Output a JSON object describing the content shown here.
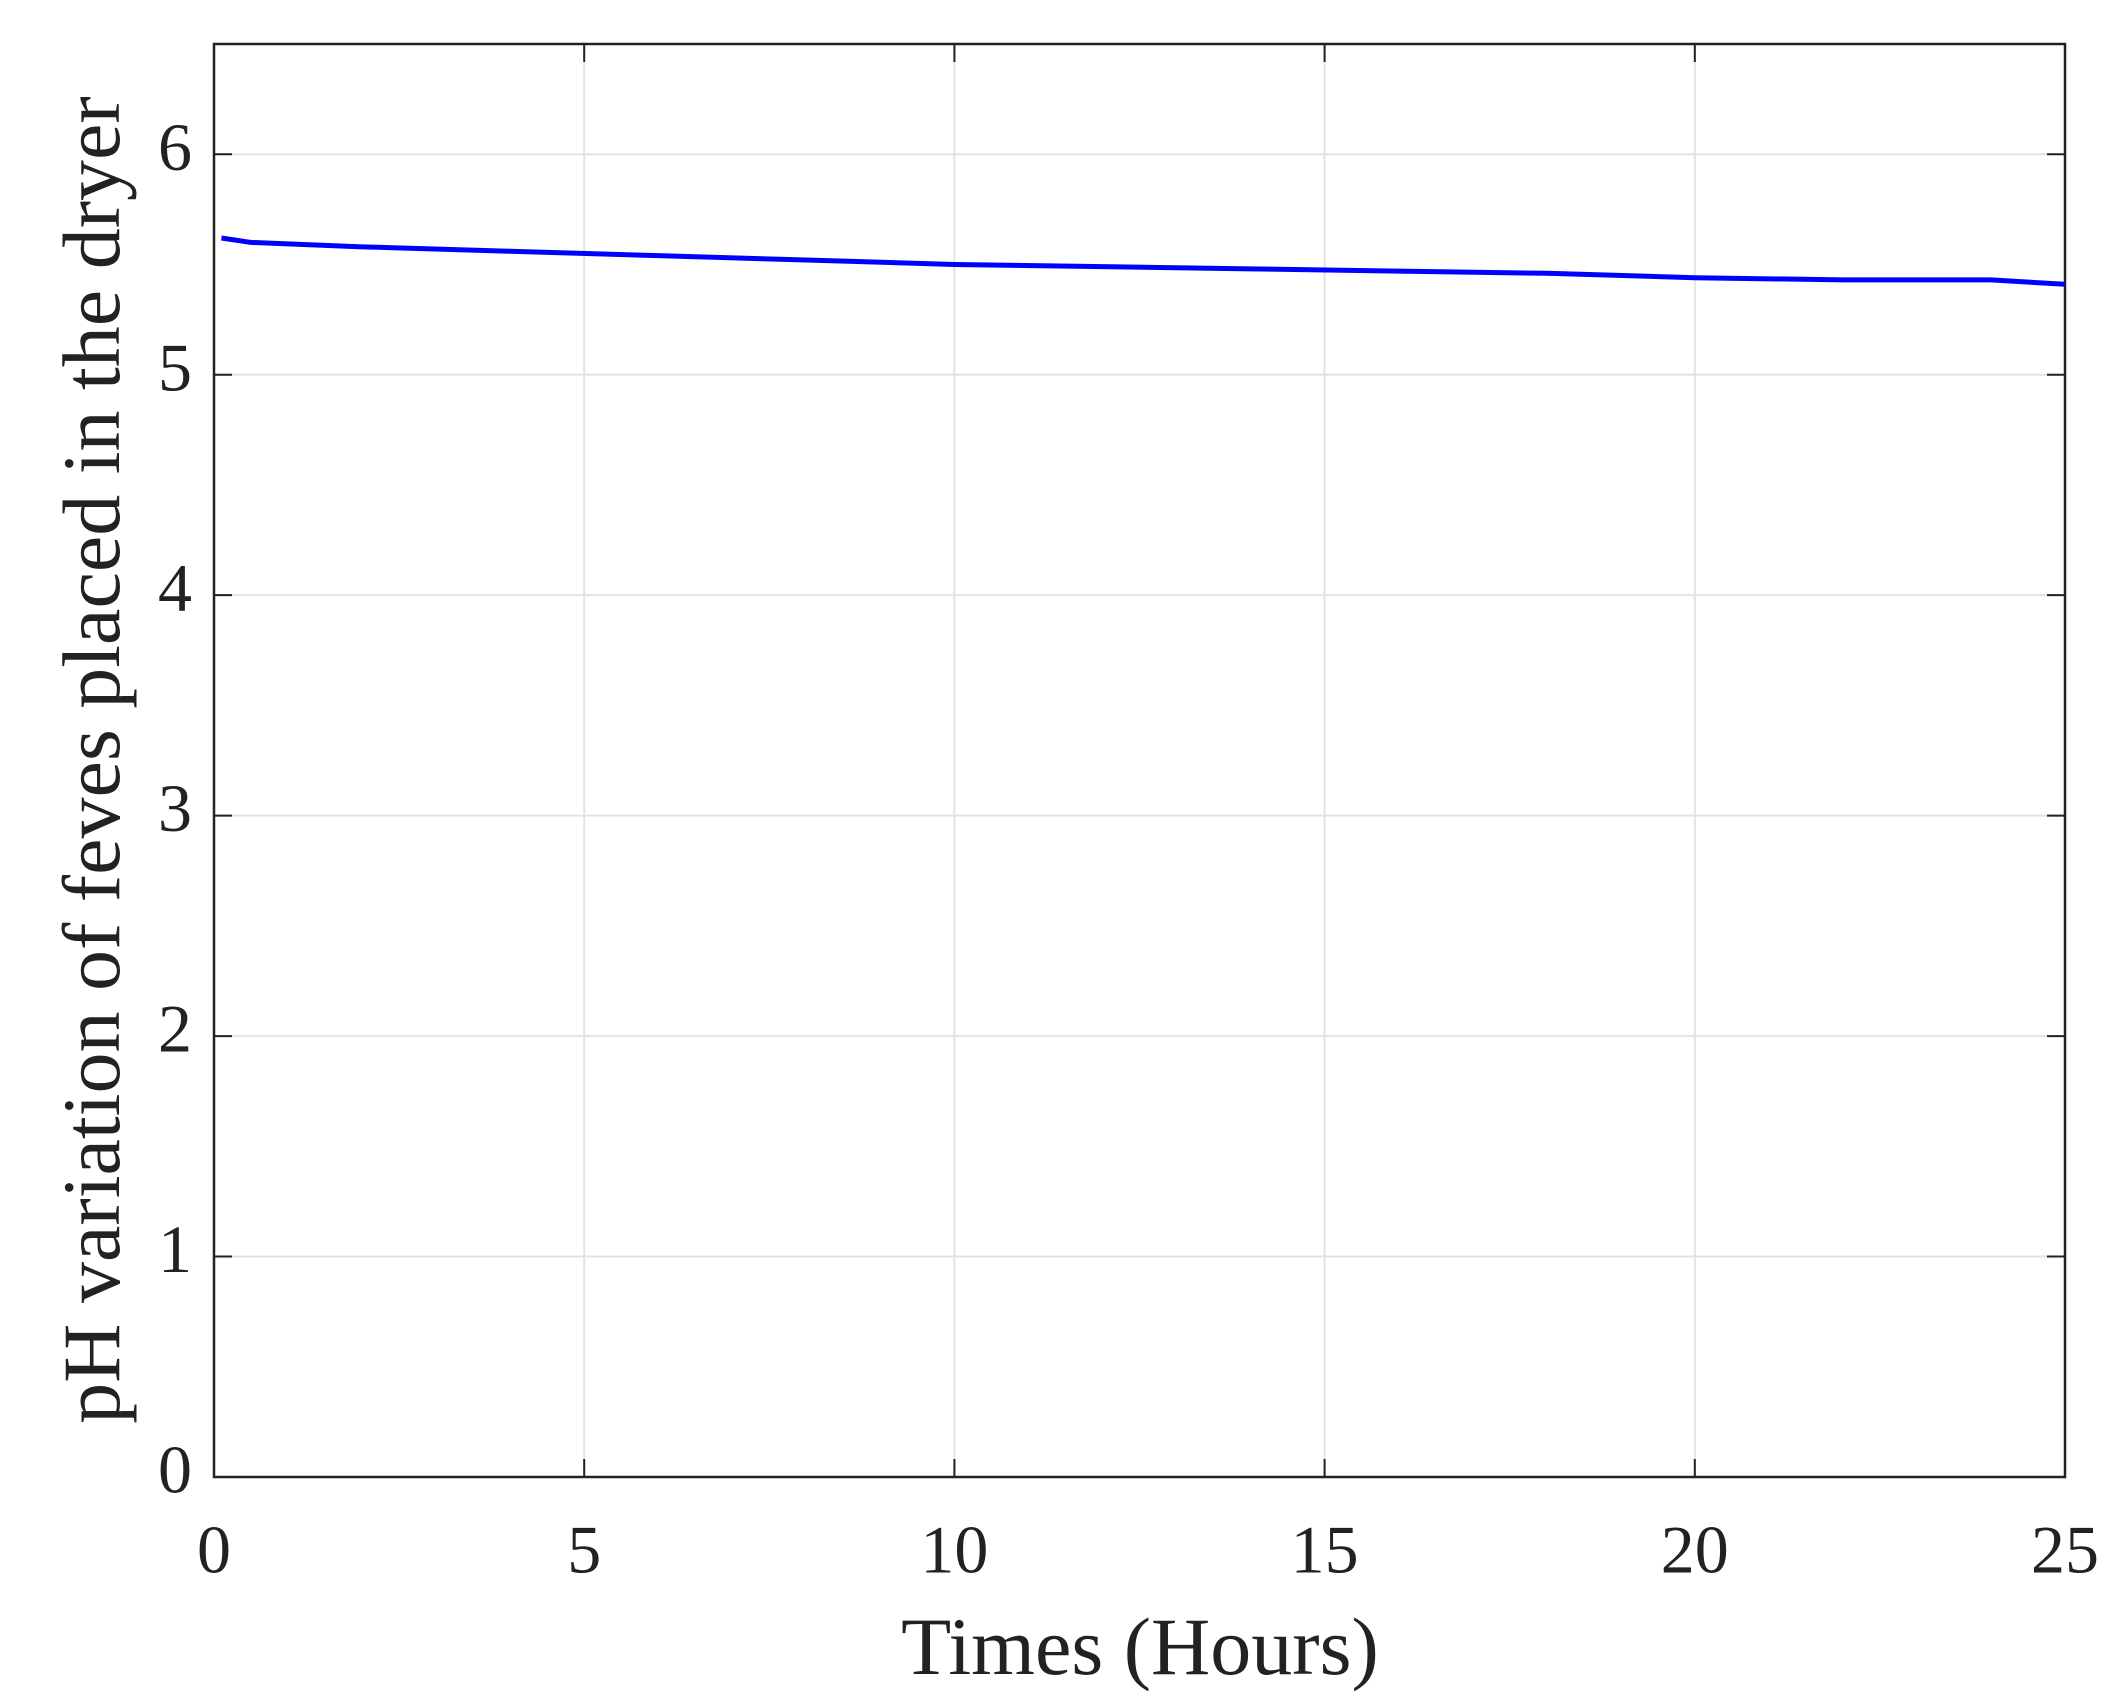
{
  "chart_data": {
    "type": "line",
    "xlabel": "Times (Hours)",
    "ylabel": "pH variation of feves placed in the dryer",
    "x": [
      0.1,
      0.5,
      2,
      4,
      6,
      8,
      10,
      12,
      14,
      16,
      18,
      20,
      22,
      24,
      25
    ],
    "series": [
      {
        "color": "#0000ff",
        "values": [
          5.62,
          5.6,
          5.58,
          5.56,
          5.54,
          5.52,
          5.5,
          5.49,
          5.48,
          5.47,
          5.46,
          5.44,
          5.43,
          5.43,
          5.41
        ]
      }
    ],
    "xlim": [
      0,
      25
    ],
    "xticks": [
      0,
      5,
      10,
      15,
      20,
      25
    ],
    "ylim": [
      0,
      6.5
    ],
    "yticks": [
      0,
      1,
      2,
      3,
      4,
      5,
      6
    ],
    "grid": true
  }
}
